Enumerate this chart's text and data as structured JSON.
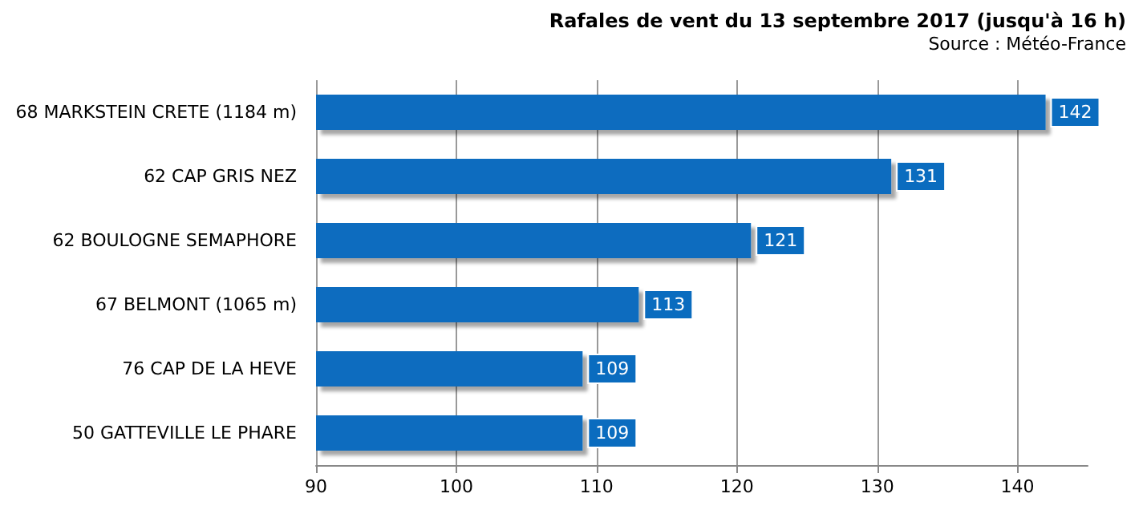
{
  "chart_data": {
    "type": "bar",
    "orientation": "horizontal",
    "title": "Rafales de vent du 13 septembre 2017 (jusqu'à 16 h)",
    "annotations": [
      "Source : Météo-France"
    ],
    "categories": [
      "68 MARKSTEIN CRETE (1184 m)",
      "62 CAP GRIS NEZ",
      "62 BOULOGNE SEMAPHORE",
      "67 BELMONT (1065 m)",
      "76 CAP DE LA HEVE",
      "50 GATTEVILLE LE PHARE"
    ],
    "values": [
      142,
      131,
      121,
      113,
      109,
      109
    ],
    "color": "#0a6cbf",
    "xlim": [
      90,
      145
    ],
    "xticks": [
      90,
      100,
      110,
      120,
      130,
      140
    ],
    "grid": "x",
    "data_labels": true
  }
}
